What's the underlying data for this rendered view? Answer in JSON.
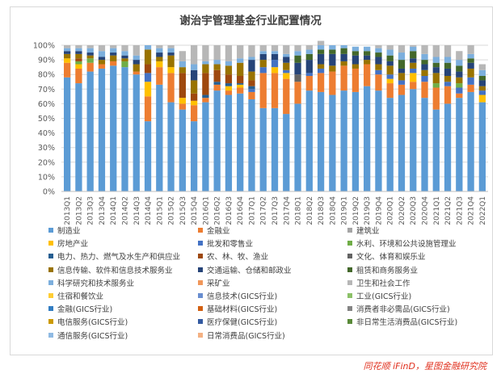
{
  "chart_data": {
    "type": "bar",
    "stacked": true,
    "title": "谢治宇管理基金行业配置情况",
    "ylim": [
      0,
      100
    ],
    "yticks": [
      "0%",
      "10%",
      "20%",
      "30%",
      "40%",
      "50%",
      "60%",
      "70%",
      "80%",
      "90%",
      "100%"
    ],
    "legend_position": "bottom",
    "categories": [
      "2013Q1",
      "2013Q2",
      "2013Q3",
      "2013Q4",
      "2014Q1",
      "2014Q2",
      "2014Q3",
      "2014Q4",
      "2015Q1",
      "2015Q2",
      "2015Q3",
      "2015Q4",
      "2016Q1",
      "2016Q2",
      "2016Q3",
      "2016Q4",
      "2017Q1",
      "2017Q2",
      "2017Q3",
      "2017Q4",
      "2018Q1",
      "2018Q2",
      "2018Q3",
      "2018Q4",
      "2019Q1",
      "2019Q2",
      "2019Q3",
      "2019Q4",
      "2020Q1",
      "2020Q2",
      "2020Q3",
      "2020Q4",
      "2021Q1",
      "2021Q2",
      "2021Q3",
      "2021Q4",
      "2022Q1"
    ],
    "series": [
      {
        "name": "制造业",
        "color": "#5b9bd5",
        "values": [
          78,
          74,
          82,
          84,
          86,
          85,
          80,
          48,
          73,
          61,
          56,
          48,
          61,
          69,
          66,
          67,
          63,
          57,
          57,
          53,
          60,
          69,
          68,
          66,
          69,
          68,
          72,
          69,
          64,
          66,
          70,
          64,
          56,
          60,
          64,
          68,
          61
        ]
      },
      {
        "name": "金融业",
        "color": "#ed7d31",
        "values": [
          10,
          10,
          6,
          3,
          3,
          0,
          2,
          17,
          12,
          20,
          4,
          11,
          3,
          4,
          3,
          4,
          5,
          24,
          24,
          24,
          15,
          10,
          13,
          16,
          17,
          16,
          15,
          11,
          10,
          7,
          5,
          11,
          15,
          12,
          3,
          5,
          0
        ]
      },
      {
        "name": "建筑业",
        "color": "#a5a5a5",
        "values": [
          0,
          0,
          0,
          0,
          0,
          0,
          0,
          0,
          0,
          0,
          0,
          0,
          0,
          0,
          0,
          0,
          0,
          0,
          0,
          0,
          0,
          0,
          0,
          0,
          0,
          0,
          0,
          0,
          0,
          0,
          0,
          0,
          0,
          0,
          0,
          0,
          0
        ]
      },
      {
        "name": "房地产业",
        "color": "#ffc000",
        "values": [
          3,
          3,
          0,
          0,
          0,
          0,
          0,
          10,
          4,
          4,
          4,
          3,
          0,
          0,
          3,
          2,
          0,
          0,
          4,
          4,
          0,
          0,
          0,
          0,
          0,
          0,
          0,
          0,
          3,
          0,
          6,
          0,
          0,
          0,
          0,
          0,
          5
        ]
      },
      {
        "name": "批发和零售业",
        "color": "#4472c4",
        "values": [
          0,
          0,
          0,
          0,
          0,
          0,
          0,
          6,
          0,
          0,
          0,
          0,
          0,
          0,
          0,
          0,
          2,
          4,
          5,
          2,
          0,
          2,
          3,
          0,
          0,
          0,
          0,
          3,
          3,
          3,
          3,
          4,
          0,
          3,
          4,
          5,
          3
        ]
      },
      {
        "name": "水利、环境和公共设施管理业",
        "color": "#70ad47",
        "values": [
          0,
          2,
          3,
          0,
          0,
          4,
          0,
          0,
          0,
          0,
          0,
          0,
          0,
          0,
          0,
          0,
          0,
          0,
          0,
          0,
          0,
          0,
          0,
          0,
          0,
          0,
          0,
          0,
          0,
          0,
          0,
          0,
          3,
          0,
          3,
          0,
          0
        ]
      },
      {
        "name": "电力、热力、燃气及水生产和供应业",
        "color": "#255e91",
        "values": [
          0,
          0,
          0,
          0,
          0,
          0,
          0,
          0,
          0,
          0,
          0,
          0,
          2,
          2,
          2,
          1,
          2,
          0,
          0,
          0,
          0,
          0,
          0,
          0,
          0,
          0,
          0,
          0,
          0,
          0,
          0,
          0,
          0,
          0,
          0,
          0,
          0
        ]
      },
      {
        "name": "农、林、牧、渔业",
        "color": "#9e480e",
        "values": [
          0,
          2,
          0,
          0,
          0,
          0,
          0,
          6,
          0,
          0,
          17,
          5,
          15,
          8,
          6,
          5,
          4,
          0,
          0,
          0,
          0,
          0,
          0,
          0,
          0,
          0,
          0,
          0,
          0,
          0,
          0,
          0,
          0,
          0,
          0,
          0,
          0
        ]
      },
      {
        "name": "文化、体育和娱乐业",
        "color": "#636363",
        "values": [
          0,
          0,
          0,
          0,
          0,
          0,
          0,
          0,
          0,
          0,
          0,
          0,
          0,
          0,
          0,
          0,
          0,
          0,
          0,
          0,
          5,
          0,
          0,
          0,
          0,
          0,
          0,
          0,
          0,
          0,
          0,
          0,
          0,
          0,
          0,
          0,
          0
        ]
      },
      {
        "name": "信息传输、软件和信息技术服务业",
        "color": "#997300",
        "values": [
          3,
          3,
          2,
          3,
          4,
          2,
          5,
          10,
          3,
          8,
          4,
          9,
          6,
          4,
          6,
          9,
          6,
          5,
          0,
          5,
          0,
          0,
          3,
          4,
          3,
          3,
          3,
          4,
          6,
          5,
          4,
          4,
          7,
          4,
          4,
          6,
          3
        ]
      },
      {
        "name": "交通运输、仓储和邮政业",
        "color": "#264478",
        "values": [
          2,
          2,
          2,
          2,
          2,
          2,
          3,
          0,
          3,
          2,
          0,
          7,
          0,
          0,
          0,
          0,
          8,
          4,
          4,
          4,
          8,
          9,
          7,
          8,
          5,
          6,
          3,
          5,
          3,
          3,
          3,
          4,
          4,
          5,
          4,
          4,
          4
        ]
      },
      {
        "name": "租赁和商务服务业",
        "color": "#43682b",
        "values": [
          0,
          0,
          0,
          0,
          0,
          0,
          0,
          0,
          0,
          0,
          0,
          0,
          0,
          0,
          0,
          0,
          0,
          0,
          0,
          0,
          5,
          4,
          3,
          3,
          4,
          3,
          3,
          3,
          4,
          6,
          5,
          3,
          3,
          4,
          4,
          3,
          3
        ]
      },
      {
        "name": "科学研究和技术服务业",
        "color": "#7cafdd",
        "values": [
          2,
          2,
          3,
          4,
          3,
          3,
          3,
          3,
          3,
          3,
          4,
          4,
          2,
          3,
          3,
          3,
          2,
          2,
          2,
          2,
          3,
          3,
          3,
          3,
          2,
          3,
          3,
          3,
          4,
          5,
          3,
          4,
          4,
          4,
          4,
          3,
          4
        ]
      },
      {
        "name": "采矿业",
        "color": "#f1975a",
        "values": [
          0,
          0,
          0,
          0,
          0,
          0,
          0,
          0,
          0,
          0,
          0,
          0,
          0,
          0,
          0,
          0,
          0,
          0,
          0,
          0,
          0,
          0,
          0,
          0,
          0,
          0,
          0,
          0,
          0,
          0,
          0,
          0,
          0,
          0,
          0,
          0,
          0
        ]
      },
      {
        "name": "卫生和社会工作",
        "color": "#b7b7b7",
        "values": [
          2,
          2,
          2,
          4,
          2,
          4,
          7,
          0,
          2,
          2,
          7,
          13,
          11,
          10,
          11,
          9,
          8,
          4,
          4,
          6,
          4,
          3,
          3,
          0,
          0,
          0,
          0,
          2,
          3,
          5,
          1,
          6,
          8,
          8,
          6,
          6,
          4
        ]
      },
      {
        "name": "住宿和餐饮业",
        "color": "#ffcd33",
        "values": [
          0,
          0,
          0,
          0,
          0,
          0,
          0,
          0,
          0,
          0,
          0,
          0,
          0,
          0,
          0,
          0,
          0,
          0,
          0,
          0,
          0,
          0,
          0,
          0,
          0,
          0,
          0,
          0,
          0,
          0,
          0,
          0,
          0,
          0,
          0,
          0,
          0
        ]
      },
      {
        "name": "信息技术(GICS行业)",
        "color": "#698ed0",
        "values": [
          0,
          0,
          0,
          0,
          0,
          0,
          0,
          0,
          0,
          0,
          0,
          0,
          0,
          0,
          0,
          0,
          0,
          0,
          0,
          0,
          0,
          0,
          0,
          0,
          0,
          0,
          0,
          0,
          0,
          0,
          0,
          0,
          0,
          0,
          0,
          0,
          0
        ]
      },
      {
        "name": "工业(GICS行业)",
        "color": "#8cc168",
        "values": [
          0,
          0,
          0,
          0,
          0,
          0,
          0,
          0,
          0,
          0,
          0,
          0,
          0,
          0,
          0,
          0,
          0,
          0,
          0,
          0,
          0,
          0,
          0,
          0,
          0,
          0,
          0,
          0,
          0,
          0,
          0,
          0,
          0,
          0,
          0,
          0,
          0
        ]
      },
      {
        "name": "金融(GICS行业)",
        "color": "#327dc2",
        "values": [
          0,
          0,
          0,
          0,
          0,
          0,
          0,
          0,
          0,
          0,
          0,
          0,
          0,
          0,
          0,
          0,
          0,
          0,
          0,
          0,
          0,
          0,
          0,
          0,
          0,
          0,
          0,
          0,
          0,
          0,
          0,
          0,
          0,
          0,
          0,
          0,
          0
        ]
      },
      {
        "name": "基础材料(GICS行业)",
        "color": "#d26012",
        "values": [
          0,
          0,
          0,
          0,
          0,
          0,
          0,
          0,
          0,
          0,
          0,
          0,
          0,
          0,
          0,
          0,
          0,
          0,
          0,
          0,
          0,
          0,
          0,
          0,
          0,
          0,
          0,
          0,
          0,
          0,
          0,
          0,
          0,
          0,
          0,
          0,
          0
        ]
      },
      {
        "name": "消费者非必需品(GICS行业)",
        "color": "#848484",
        "values": [
          0,
          0,
          0,
          0,
          0,
          0,
          0,
          0,
          0,
          0,
          0,
          0,
          0,
          0,
          0,
          0,
          0,
          0,
          0,
          0,
          0,
          0,
          0,
          0,
          0,
          0,
          0,
          0,
          0,
          0,
          0,
          0,
          0,
          0,
          0,
          0,
          0
        ]
      },
      {
        "name": "电信服务(GICS行业)",
        "color": "#cc9a00",
        "values": [
          0,
          0,
          0,
          0,
          0,
          0,
          0,
          0,
          0,
          0,
          0,
          0,
          0,
          0,
          0,
          0,
          0,
          0,
          0,
          0,
          0,
          0,
          0,
          0,
          0,
          0,
          0,
          0,
          0,
          0,
          0,
          0,
          0,
          0,
          0,
          0,
          0
        ]
      },
      {
        "name": "医疗保健(GICS行业)",
        "color": "#335aa1",
        "values": [
          0,
          0,
          0,
          0,
          0,
          0,
          0,
          0,
          0,
          0,
          0,
          0,
          0,
          0,
          0,
          0,
          0,
          0,
          0,
          0,
          0,
          0,
          0,
          0,
          0,
          0,
          0,
          0,
          0,
          0,
          0,
          0,
          0,
          0,
          0,
          0,
          0
        ]
      },
      {
        "name": "非日常生活消费品(GICS行业)",
        "color": "#5a8a39",
        "values": [
          0,
          0,
          0,
          0,
          0,
          0,
          0,
          0,
          0,
          0,
          0,
          0,
          0,
          0,
          0,
          0,
          0,
          0,
          0,
          0,
          0,
          0,
          0,
          0,
          0,
          0,
          0,
          0,
          0,
          0,
          0,
          0,
          0,
          0,
          0,
          0,
          0
        ]
      },
      {
        "name": "通信服务(GICS行业)",
        "color": "#8fbae3",
        "values": [
          0,
          0,
          0,
          0,
          0,
          0,
          0,
          0,
          0,
          0,
          0,
          0,
          0,
          0,
          0,
          0,
          0,
          0,
          0,
          0,
          0,
          0,
          0,
          0,
          0,
          0,
          0,
          0,
          0,
          0,
          0,
          0,
          0,
          0,
          0,
          0,
          0
        ]
      },
      {
        "name": "日常消费品(GICS行业)",
        "color": "#f4b183",
        "values": [
          0,
          0,
          0,
          0,
          0,
          0,
          0,
          0,
          0,
          0,
          0,
          0,
          0,
          0,
          0,
          0,
          0,
          0,
          0,
          0,
          0,
          0,
          0,
          0,
          0,
          0,
          0,
          0,
          0,
          0,
          0,
          0,
          0,
          0,
          0,
          0,
          0
        ]
      }
    ]
  },
  "source": "同花顺 iFinD，星图金融研究院"
}
